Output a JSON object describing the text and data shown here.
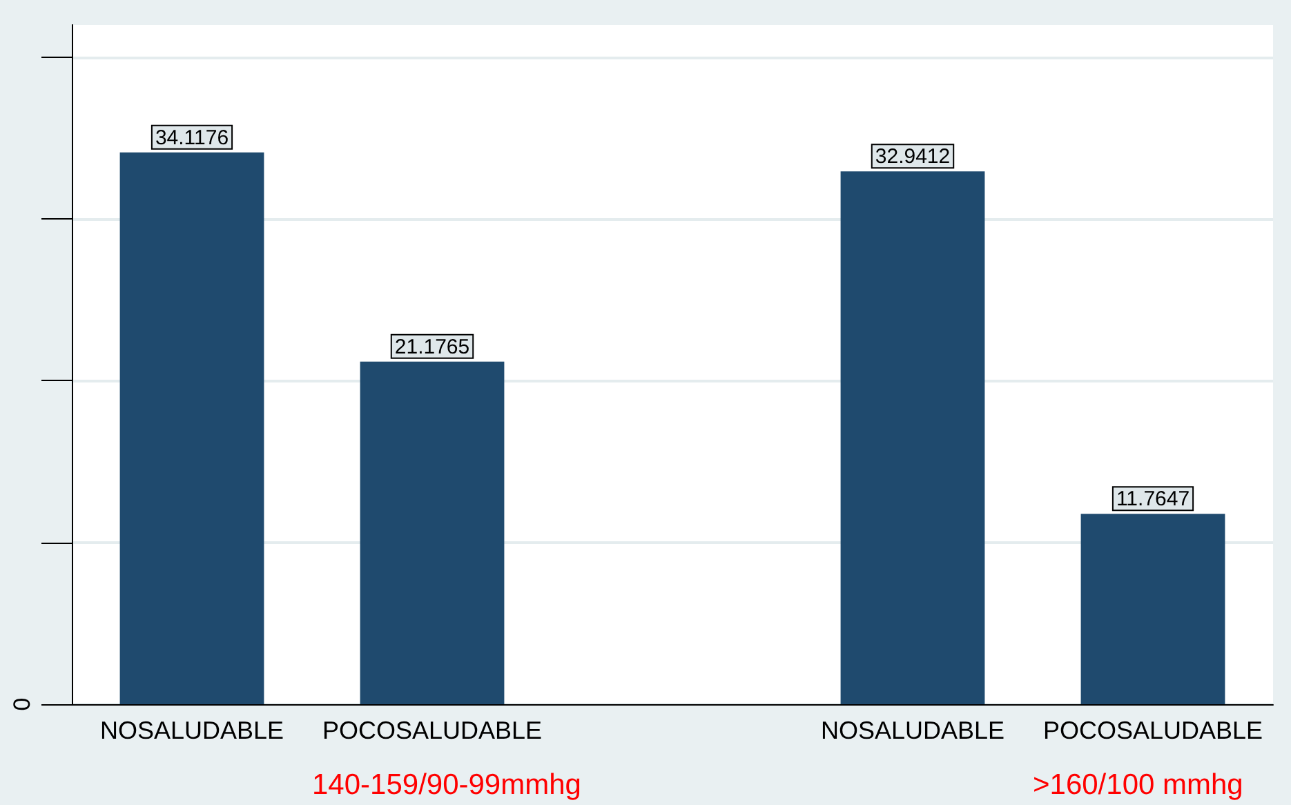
{
  "chart_data": {
    "type": "bar",
    "categories": [
      "NOSALUDABLE",
      "POCOSALUDABLE",
      null,
      "NOSALUDABLE",
      "POCOSALUDABLE"
    ],
    "values": [
      34.1176,
      21.1765,
      null,
      32.9412,
      11.7647
    ],
    "color": "#1f4a6e",
    "ylim": [
      0,
      42
    ],
    "yticks": [
      {
        "value": 0,
        "label": null
      },
      {
        "value": 10,
        "label": null
      },
      {
        "value": 20,
        "label": null
      },
      {
        "value": 30,
        "label": null
      },
      {
        "value": 40,
        "label": null
      }
    ],
    "grid": "y",
    "data_labels": true,
    "annotations": [
      "140-159/90-99mmhg",
      ">160/100 mmhg",
      "0"
    ]
  }
}
